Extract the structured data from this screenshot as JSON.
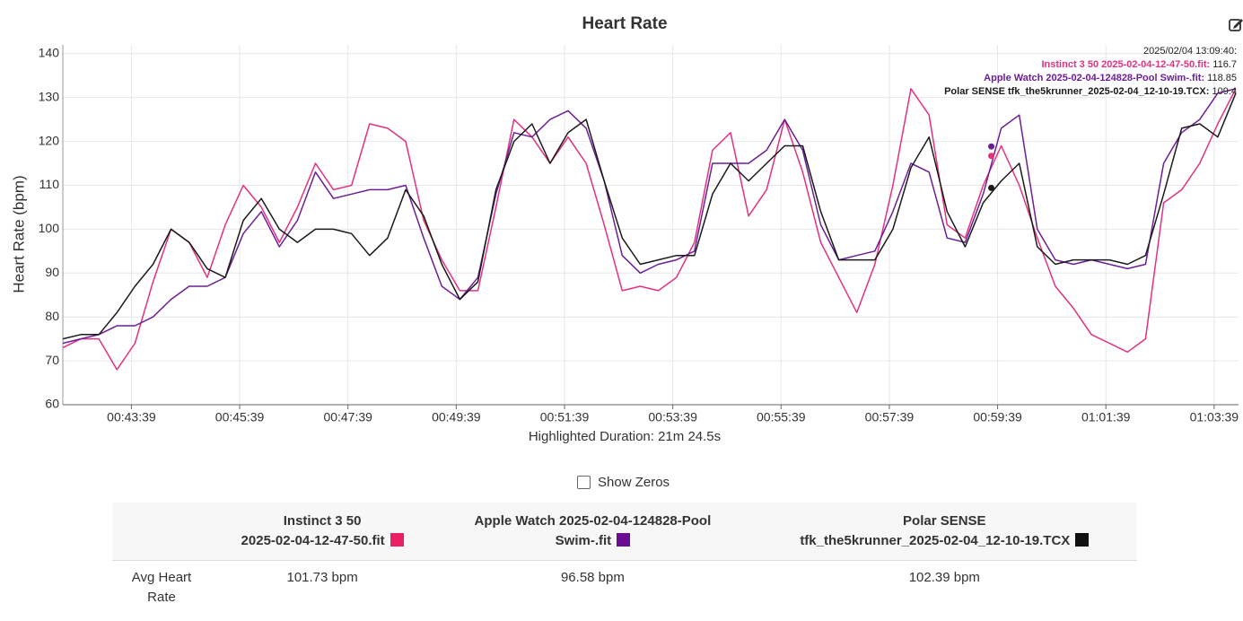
{
  "chart_data": {
    "type": "line",
    "title": "Heart Rate",
    "xlabel": "Highlighted Duration: 21m 24.5s",
    "ylabel": "Heart Rate (bpm)",
    "xlim": [
      2543,
      3846
    ],
    "ylim": [
      60,
      142
    ],
    "yticks": [
      60,
      70,
      80,
      90,
      100,
      110,
      120,
      130,
      140
    ],
    "xticks": [
      {
        "value": 2619,
        "label": "00:43:39"
      },
      {
        "value": 2739,
        "label": "00:45:39"
      },
      {
        "value": 2859,
        "label": "00:47:39"
      },
      {
        "value": 2979,
        "label": "00:49:39"
      },
      {
        "value": 3099,
        "label": "00:51:39"
      },
      {
        "value": 3219,
        "label": "00:53:39"
      },
      {
        "value": 3339,
        "label": "00:55:39"
      },
      {
        "value": 3459,
        "label": "00:57:39"
      },
      {
        "value": 3579,
        "label": "00:59:39"
      },
      {
        "value": 3699,
        "label": "01:01:39"
      },
      {
        "value": 3819,
        "label": "01:03:39"
      }
    ],
    "grid": true,
    "x": [
      2543,
      2563,
      2583,
      2603,
      2623,
      2643,
      2663,
      2683,
      2703,
      2723,
      2743,
      2763,
      2783,
      2803,
      2823,
      2843,
      2863,
      2883,
      2903,
      2923,
      2943,
      2963,
      2983,
      3003,
      3023,
      3043,
      3063,
      3083,
      3103,
      3123,
      3143,
      3163,
      3183,
      3203,
      3223,
      3243,
      3263,
      3283,
      3303,
      3323,
      3343,
      3363,
      3383,
      3403,
      3423,
      3443,
      3463,
      3483,
      3503,
      3523,
      3543,
      3563,
      3583,
      3603,
      3623,
      3643,
      3663,
      3683,
      3703,
      3723,
      3743,
      3763,
      3783,
      3803,
      3823,
      3843
    ],
    "series": [
      {
        "name": "Instinct 3 50 2025-02-04-12-47-50.fit",
        "color": "#e3317f",
        "values": [
          73,
          75,
          75,
          68,
          74,
          88,
          100,
          97,
          89,
          101,
          110,
          105,
          97,
          105,
          115,
          109,
          110,
          124,
          123,
          120,
          102,
          93,
          86,
          86,
          105,
          125,
          121,
          115,
          121,
          115,
          101,
          86,
          87,
          86,
          89,
          97,
          118,
          122,
          103,
          109,
          125,
          113,
          97,
          89,
          81,
          92,
          110,
          132,
          126,
          101,
          98,
          110,
          119,
          110,
          98,
          87,
          82,
          76,
          74,
          72,
          75,
          106,
          109,
          115,
          124,
          132
        ]
      },
      {
        "name": "Apple Watch 2025-02-04-124828-Pool Swim-.fit",
        "color": "#6b1f96",
        "values": [
          74,
          75,
          76,
          78,
          78,
          80,
          84,
          87,
          87,
          89,
          99,
          104,
          96,
          102,
          113,
          107,
          108,
          109,
          109,
          110,
          98,
          87,
          84,
          89,
          108,
          122,
          121,
          125,
          127,
          123,
          111,
          94,
          90,
          92,
          93,
          95,
          115,
          115,
          115,
          118,
          125,
          118,
          101,
          93,
          94,
          95,
          104,
          115,
          113,
          98,
          97,
          108,
          123,
          126,
          100,
          93,
          92,
          93,
          92,
          91,
          92,
          115,
          122,
          125,
          131,
          132
        ]
      },
      {
        "name": "Polar SENSE tfk_the5krunner_2025-02-04_12-10-19.TCX",
        "color": "#1a1a1a",
        "values": [
          75,
          76,
          76,
          81,
          87,
          92,
          100,
          97,
          91,
          89,
          102,
          107,
          100,
          97,
          100,
          100,
          99,
          94,
          98,
          109,
          103,
          92,
          84,
          88,
          109,
          120,
          124,
          115,
          122,
          125,
          111,
          98,
          92,
          93,
          94,
          94,
          108,
          115,
          111,
          115,
          119,
          119,
          104,
          93,
          93,
          93,
          100,
          114,
          121,
          104,
          96,
          106,
          111,
          115,
          96,
          92,
          93,
          93,
          93,
          92,
          94,
          108,
          123,
          124,
          121,
          131
        ]
      }
    ],
    "tooltip": {
      "time": "2025/02/04 13:09:40:",
      "x": 3572,
      "values": [
        116.7,
        118.85,
        109.4
      ]
    }
  },
  "controls": {
    "show_zeros": "Show Zeros"
  },
  "table": {
    "columns": [
      {
        "line1": "Instinct 3 50",
        "line2": "2025-02-04-12-47-50.fit",
        "color": "#e91e63"
      },
      {
        "line1": "Apple Watch 2025-02-04-124828-Pool",
        "line2": "Swim-.fit",
        "color": "#6a0d91"
      },
      {
        "line1": "Polar SENSE",
        "line2": "tfk_the5krunner_2025-02-04_12-10-19.TCX",
        "color": "#111111"
      }
    ],
    "rows": [
      {
        "label": "Avg Heart Rate",
        "cells": [
          "101.73 bpm",
          "96.58 bpm",
          "102.39 bpm"
        ]
      }
    ]
  }
}
